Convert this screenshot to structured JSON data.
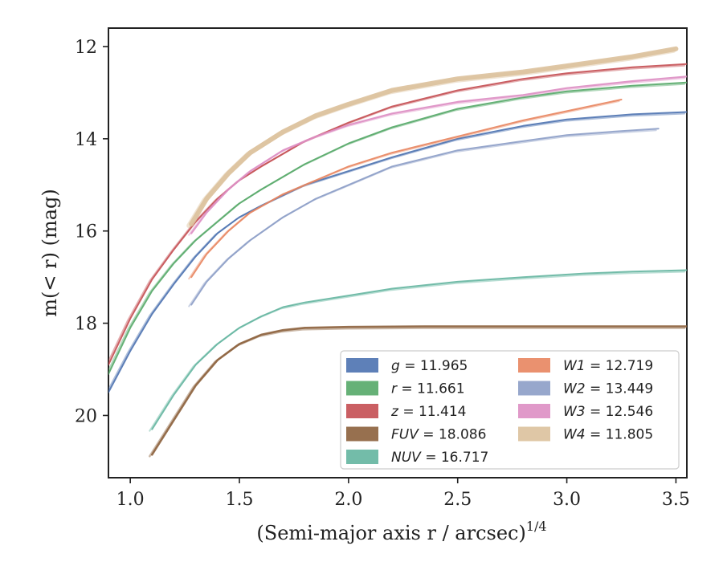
{
  "chart_data": {
    "type": "line",
    "title": "",
    "xlabel": "(Semi-major axis r / arcsec)",
    "xlabel_sup": "1/4",
    "ylabel": "m(< r) (mag)",
    "xlim": [
      0.9,
      3.55
    ],
    "ylim": [
      21.35,
      11.6
    ],
    "y_inverted": true,
    "x_ticks": [
      1.0,
      1.5,
      2.0,
      2.5,
      3.0,
      3.5
    ],
    "x_tick_labels": [
      "1.0",
      "1.5",
      "2.0",
      "2.5",
      "3.0",
      "3.5"
    ],
    "y_ticks": [
      12,
      14,
      16,
      18,
      20
    ],
    "y_tick_labels": [
      "12",
      "14",
      "16",
      "18",
      "20"
    ],
    "grid": false,
    "legend_position": "lower-right",
    "legend_columns": 2,
    "series": [
      {
        "id": "g",
        "label": "g = 11.965",
        "color": "#4c72b0",
        "x": [
          0.9,
          1.0,
          1.1,
          1.2,
          1.3,
          1.4,
          1.5,
          1.6,
          1.8,
          2.0,
          2.2,
          2.5,
          2.8,
          3.0,
          3.3,
          3.55
        ],
        "y": [
          19.5,
          18.6,
          17.8,
          17.15,
          16.55,
          16.05,
          15.7,
          15.45,
          15.0,
          14.7,
          14.4,
          14.0,
          13.72,
          13.58,
          13.47,
          13.42
        ]
      },
      {
        "id": "r",
        "label": "r = 11.661",
        "color": "#55a868",
        "x": [
          0.9,
          1.0,
          1.1,
          1.2,
          1.3,
          1.4,
          1.5,
          1.6,
          1.8,
          2.0,
          2.2,
          2.5,
          2.8,
          3.0,
          3.3,
          3.55
        ],
        "y": [
          19.1,
          18.1,
          17.3,
          16.7,
          16.2,
          15.8,
          15.4,
          15.1,
          14.55,
          14.1,
          13.75,
          13.35,
          13.1,
          12.97,
          12.85,
          12.78
        ]
      },
      {
        "id": "z",
        "label": "z = 11.414",
        "color": "#c44e52",
        "x": [
          0.9,
          1.0,
          1.1,
          1.2,
          1.3,
          1.4,
          1.5,
          1.6,
          1.8,
          2.0,
          2.2,
          2.5,
          2.8,
          3.0,
          3.3,
          3.55
        ],
        "y": [
          18.9,
          17.9,
          17.05,
          16.4,
          15.8,
          15.3,
          14.9,
          14.6,
          14.05,
          13.65,
          13.3,
          12.95,
          12.7,
          12.58,
          12.45,
          12.38
        ]
      },
      {
        "id": "fuv",
        "label": "FUV = 18.086",
        "color": "#8c613c",
        "x": [
          1.1,
          1.2,
          1.3,
          1.4,
          1.5,
          1.6,
          1.7,
          1.8,
          2.0,
          2.35,
          2.7,
          3.0,
          3.3,
          3.55
        ],
        "y": [
          20.85,
          20.1,
          19.35,
          18.8,
          18.45,
          18.25,
          18.15,
          18.1,
          18.08,
          18.07,
          18.07,
          18.07,
          18.07,
          18.07
        ]
      },
      {
        "id": "nuv",
        "label": "NUV = 16.717",
        "color": "#64b5a0",
        "x": [
          1.1,
          1.2,
          1.3,
          1.4,
          1.5,
          1.6,
          1.7,
          1.8,
          2.0,
          2.2,
          2.5,
          2.8,
          3.08,
          3.3,
          3.55
        ],
        "y": [
          20.3,
          19.55,
          18.9,
          18.45,
          18.1,
          17.85,
          17.65,
          17.55,
          17.4,
          17.25,
          17.1,
          17.0,
          16.92,
          16.88,
          16.85
        ]
      },
      {
        "id": "w1",
        "label": "W1 = 12.719",
        "color": "#e8855f",
        "x": [
          1.28,
          1.35,
          1.45,
          1.55,
          1.7,
          1.85,
          2.0,
          2.2,
          2.5,
          2.8,
          3.0,
          3.25
        ],
        "y": [
          17.0,
          16.5,
          16.0,
          15.6,
          15.2,
          14.9,
          14.6,
          14.3,
          13.95,
          13.6,
          13.4,
          13.15
        ]
      },
      {
        "id": "w2",
        "label": "W2 = 13.449",
        "color": "#8c9dc6",
        "x": [
          1.28,
          1.35,
          1.45,
          1.55,
          1.7,
          1.85,
          2.0,
          2.2,
          2.5,
          2.8,
          3.0,
          3.2,
          3.42
        ],
        "y": [
          17.6,
          17.1,
          16.6,
          16.2,
          15.7,
          15.3,
          15.0,
          14.6,
          14.25,
          14.05,
          13.92,
          13.85,
          13.78
        ]
      },
      {
        "id": "w3",
        "label": "W3 = 12.546",
        "color": "#dd8ec3",
        "x": [
          1.28,
          1.35,
          1.45,
          1.55,
          1.7,
          1.85,
          2.0,
          2.2,
          2.5,
          2.8,
          3.0,
          3.3,
          3.55
        ],
        "y": [
          16.05,
          15.6,
          15.1,
          14.7,
          14.25,
          13.95,
          13.7,
          13.45,
          13.2,
          13.05,
          12.9,
          12.75,
          12.65
        ]
      },
      {
        "id": "w4",
        "label": "W4 = 11.805",
        "color": "#dcc19c",
        "x": [
          1.28,
          1.35,
          1.45,
          1.55,
          1.7,
          1.85,
          2.0,
          2.2,
          2.5,
          2.8,
          3.0,
          3.3,
          3.5
        ],
        "y": [
          15.85,
          15.3,
          14.75,
          14.3,
          13.85,
          13.5,
          13.25,
          12.95,
          12.7,
          12.55,
          12.42,
          12.22,
          12.05
        ]
      }
    ]
  }
}
